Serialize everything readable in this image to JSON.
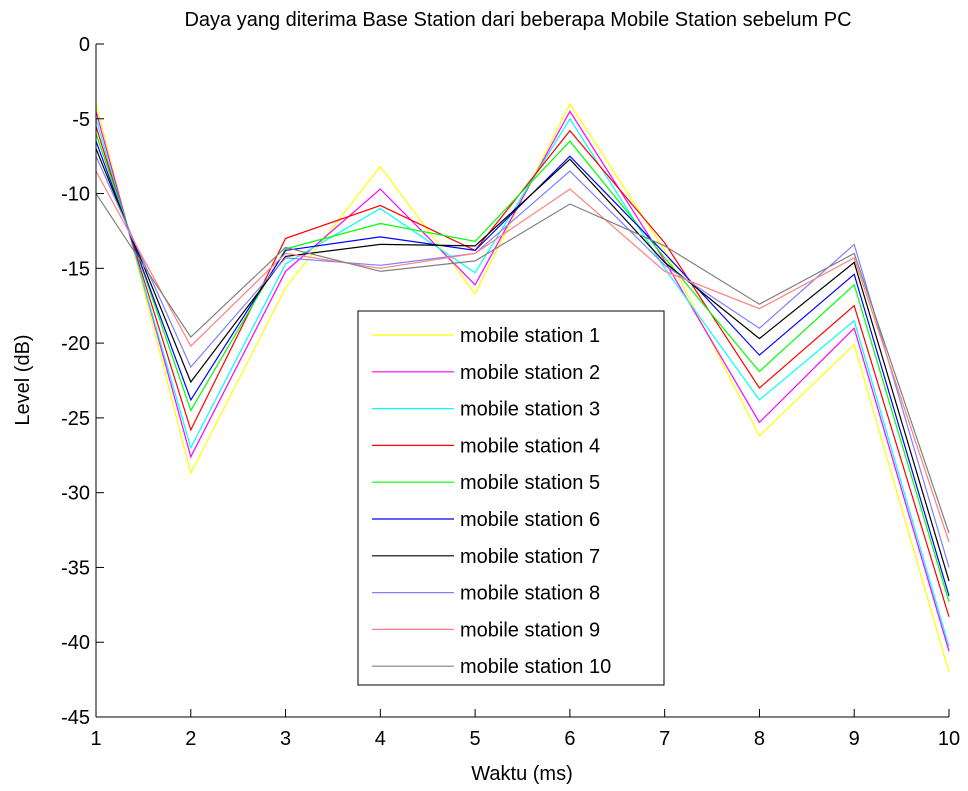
{
  "chart_data": {
    "type": "line",
    "title": "Daya yang diterima Base Station dari beberapa Mobile Station sebelum PC",
    "xlabel": "Waktu (ms)",
    "ylabel": "Level (dB)",
    "xlim": [
      1,
      10
    ],
    "ylim": [
      -45,
      0
    ],
    "xticks": [
      "1",
      "2",
      "3",
      "4",
      "5",
      "6",
      "7",
      "8",
      "9",
      "10"
    ],
    "yticks": [
      "0",
      "-5",
      "-10",
      "-15",
      "-20",
      "-25",
      "-30",
      "-35",
      "-40",
      "-45"
    ],
    "grid": false,
    "legend_position": "center",
    "x": [
      1,
      2,
      3,
      4,
      5,
      6,
      7,
      8,
      9,
      10
    ],
    "series": [
      {
        "name": "mobile station 1",
        "color": "#ffff00",
        "values": [
          -4.0,
          -28.7,
          -16.3,
          -8.2,
          -16.7,
          -4.0,
          -13.8,
          -26.2,
          -20.1,
          -42.0
        ]
      },
      {
        "name": "mobile station 2",
        "color": "#ff00ff",
        "values": [
          -4.5,
          -27.6,
          -15.2,
          -9.7,
          -16.1,
          -4.5,
          -14.5,
          -25.3,
          -19.0,
          -40.6
        ]
      },
      {
        "name": "mobile station 3",
        "color": "#00ffff",
        "values": [
          -5.0,
          -27.0,
          -14.7,
          -11.0,
          -15.3,
          -5.0,
          -15.0,
          -23.8,
          -18.5,
          -40.3
        ]
      },
      {
        "name": "mobile station 4",
        "color": "#ff0000",
        "values": [
          -5.5,
          -25.8,
          -13.0,
          -10.8,
          -13.8,
          -5.8,
          -13.3,
          -23.0,
          -17.5,
          -38.3
        ]
      },
      {
        "name": "mobile station 5",
        "color": "#00ff00",
        "values": [
          -6.0,
          -24.5,
          -13.7,
          -12.0,
          -13.2,
          -6.5,
          -14.3,
          -21.9,
          -16.1,
          -37.3
        ]
      },
      {
        "name": "mobile station 6",
        "color": "#0000ff",
        "values": [
          -6.5,
          -23.8,
          -13.8,
          -12.9,
          -13.8,
          -7.5,
          -14.0,
          -20.8,
          -15.4,
          -36.9
        ]
      },
      {
        "name": "mobile station 7",
        "color": "#000000",
        "values": [
          -7.0,
          -22.6,
          -14.2,
          -13.4,
          -13.5,
          -7.7,
          -14.6,
          -19.7,
          -14.6,
          -35.9
        ]
      },
      {
        "name": "mobile station 8",
        "color": "#8080ff",
        "values": [
          -7.5,
          -21.6,
          -14.3,
          -14.8,
          -14.0,
          -8.5,
          -14.8,
          -19.0,
          -13.4,
          -35.0
        ]
      },
      {
        "name": "mobile station 9",
        "color": "#ff8080",
        "values": [
          -8.5,
          -20.2,
          -14.0,
          -15.0,
          -14.0,
          -9.7,
          -15.2,
          -17.7,
          -14.3,
          -33.3
        ]
      },
      {
        "name": "mobile station 10",
        "color": "#808080",
        "values": [
          -10.0,
          -19.6,
          -13.6,
          -15.2,
          -14.5,
          -10.7,
          -13.5,
          -17.4,
          -14.0,
          -32.7
        ]
      }
    ]
  }
}
